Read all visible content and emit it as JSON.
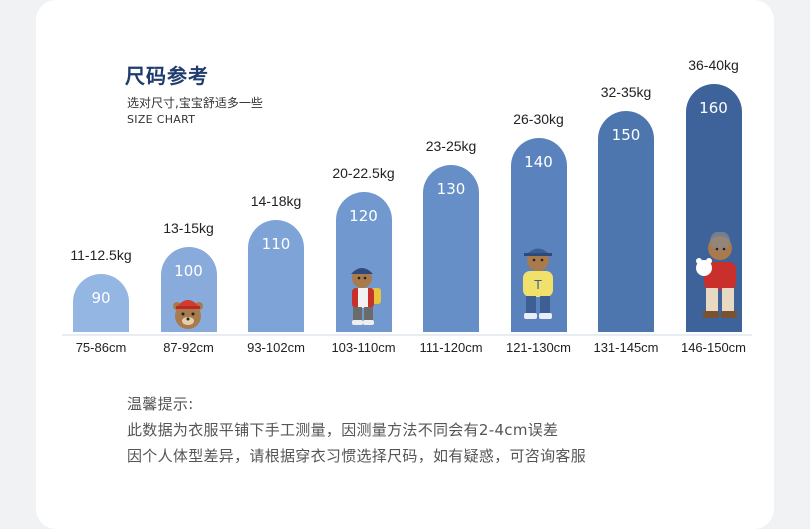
{
  "header": {
    "title": "尺码参考",
    "subtitle": "选对尺寸,宝宝舒适多一些",
    "subtitle_en": "SIZE CHART"
  },
  "chart_data": {
    "type": "bar",
    "categories": [
      "75-86cm",
      "87-92cm",
      "93-102cm",
      "103-110cm",
      "111-120cm",
      "121-130cm",
      "131-145cm",
      "146-150cm"
    ],
    "values": [
      90,
      100,
      110,
      120,
      130,
      140,
      150,
      160
    ],
    "weights": [
      "11-12.5kg",
      "13-15kg",
      "14-18kg",
      "20-22.5kg",
      "23-25kg",
      "26-30kg",
      "32-35kg",
      "36-40kg"
    ],
    "colors": [
      "#94b6e3",
      "#88abdc",
      "#7ea3d6",
      "#7199cf",
      "#668fc8",
      "#5a83bd",
      "#4e76ae",
      "#3e629a"
    ]
  },
  "notes": {
    "heading": "温馨提示:",
    "line1": "此数据为衣服平铺下手工测量，因测量方法不同会有2-4cm误差",
    "line2": "因个人体型差异，请根据穿衣习惯选择尺码，如有疑惑，可咨询客服"
  }
}
